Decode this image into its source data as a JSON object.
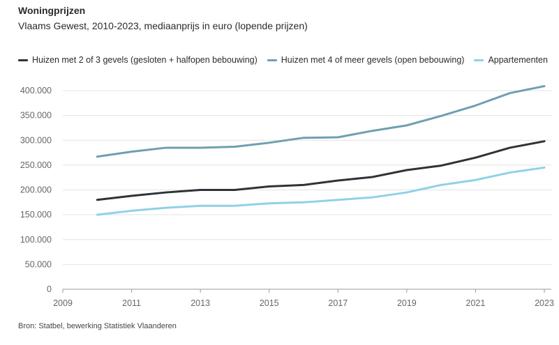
{
  "chart_data": {
    "type": "line",
    "title": "Woningprijzen",
    "subtitle": "Vlaams Gewest, 2010-2023, mediaanprijs in euro (lopende prijzen)",
    "source": "Bron: Statbel, bewerking Statistiek Vlaanderen",
    "x": [
      2010,
      2011,
      2012,
      2013,
      2014,
      2015,
      2016,
      2017,
      2018,
      2019,
      2020,
      2021,
      2022,
      2023
    ],
    "xlim": [
      2009,
      2023
    ],
    "x_ticks": [
      "2009",
      "2011",
      "2013",
      "2015",
      "2017",
      "2019",
      "2021",
      "2023"
    ],
    "ylim": [
      0,
      400000
    ],
    "y_ticks": [
      "0",
      "50.000",
      "100.000",
      "150.000",
      "200.000",
      "250.000",
      "300.000",
      "350.000",
      "400.000"
    ],
    "grid": true,
    "legend_position": "top-left",
    "series": [
      {
        "name": "Huizen met 2 of 3 gevels (gesloten + halfopen bebouwing)",
        "color": "#2e3338",
        "values": [
          180000,
          188000,
          195000,
          200000,
          200000,
          207000,
          210000,
          219000,
          226000,
          240000,
          249000,
          265000,
          285000,
          298000
        ]
      },
      {
        "name": "Huizen met 4 of meer gevels (open bebouwing)",
        "color": "#6f9faf",
        "values": [
          267000,
          277000,
          285000,
          285000,
          287000,
          295000,
          305000,
          306000,
          319000,
          330000,
          349000,
          370000,
          395000,
          409000
        ]
      },
      {
        "name": "Appartementen",
        "color": "#8fd1e8",
        "values": [
          150000,
          158000,
          164000,
          168000,
          168000,
          173000,
          175000,
          180000,
          185000,
          195000,
          210000,
          220000,
          235000,
          245000
        ]
      }
    ]
  }
}
